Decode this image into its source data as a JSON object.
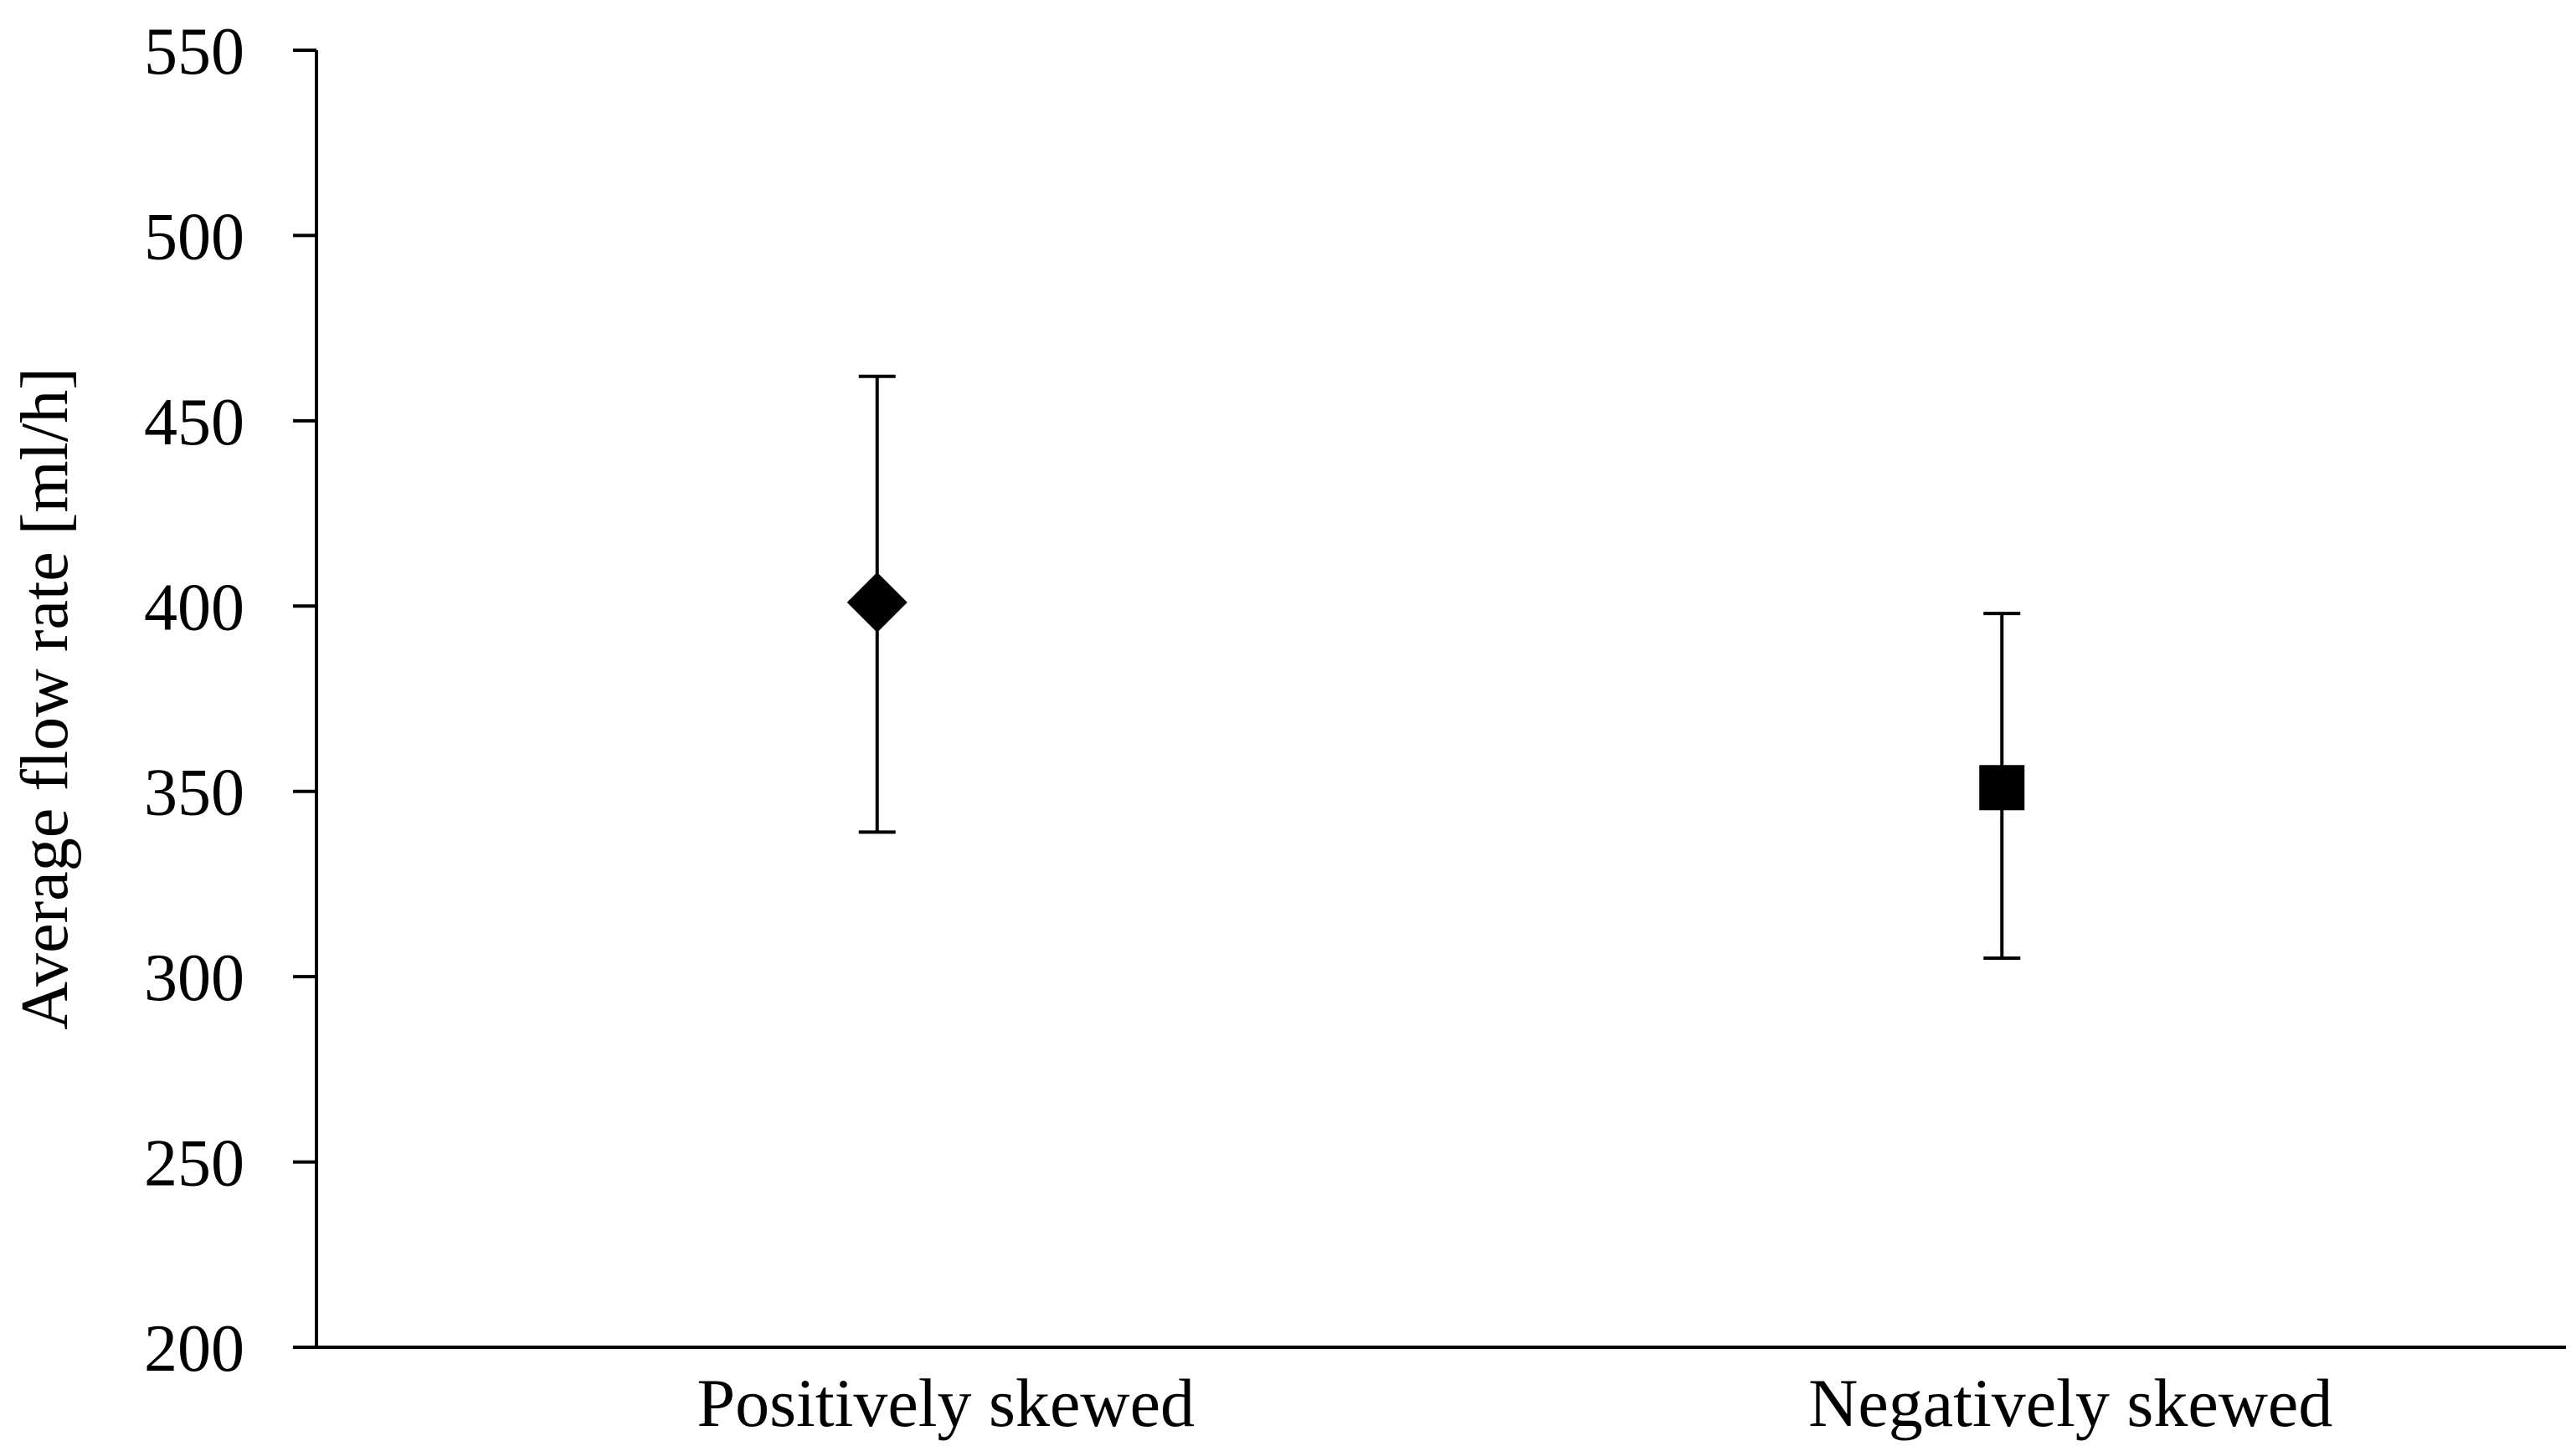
{
  "chart_data": {
    "type": "scatter",
    "title": "",
    "xlabel": "",
    "ylabel": "Average flow rate [ml/h]",
    "ylim": [
      200,
      550
    ],
    "yticks": [
      200,
      250,
      300,
      350,
      400,
      450,
      500,
      550
    ],
    "grid": false,
    "legend": "none",
    "categories": [
      "Positively skewed",
      "Negatively skewed"
    ],
    "points": [
      {
        "category": "Positively skewed",
        "value": 401,
        "error_low": 339,
        "error_high": 462,
        "marker": "diamond",
        "color": "#000000"
      },
      {
        "category": "Negatively skewed",
        "value": 351,
        "error_low": 305,
        "error_high": 398,
        "marker": "square",
        "color": "#000000"
      }
    ]
  }
}
